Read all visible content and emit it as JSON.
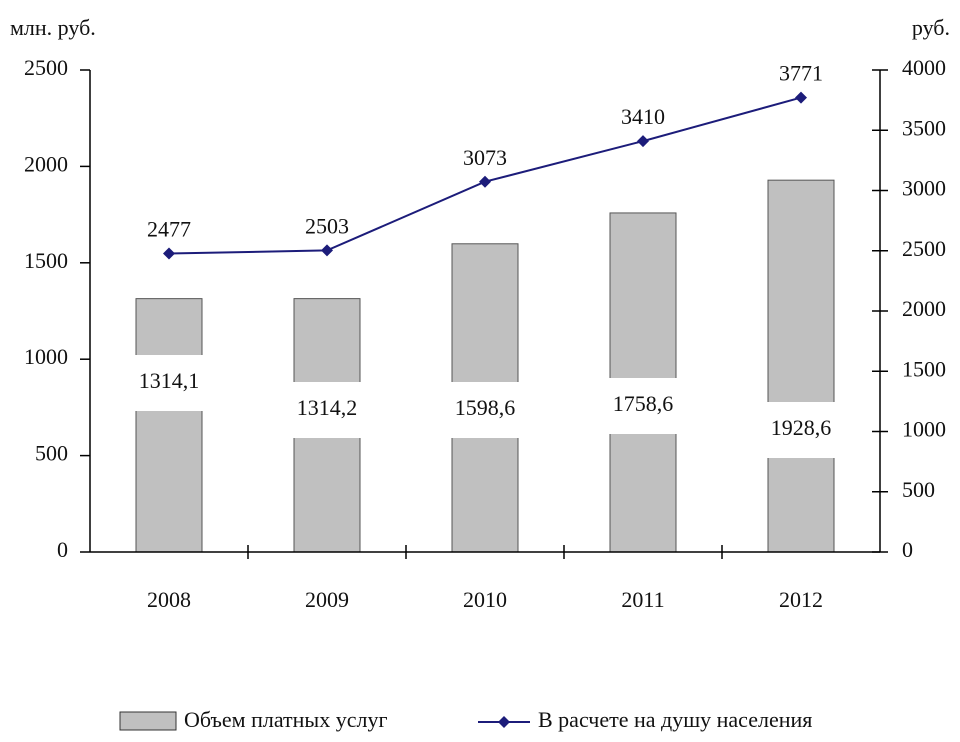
{
  "chart_data": {
    "type": "bar",
    "y_label": "млн. руб.",
    "y2_label": "руб.",
    "categories": [
      "2008",
      "2009",
      "2010",
      "2011",
      "2012"
    ],
    "series": [
      {
        "name": "Объем платных услуг",
        "type": "bar",
        "color": "#c0c0c0",
        "values": [
          1314.1,
          1314.2,
          1598.6,
          1758.6,
          1928.6
        ],
        "value_labels": [
          "1314,1",
          "1314,2",
          "1598,6",
          "1758,6",
          "1928,6"
        ]
      },
      {
        "name": "В расчете на душу населения",
        "type": "line",
        "color": "#1c1c7a",
        "axis": "y2",
        "values": [
          2477,
          2503,
          3073,
          3410,
          3771
        ]
      }
    ],
    "ylim": [
      0,
      2500
    ],
    "yticks": [
      0,
      500,
      1000,
      1500,
      2000,
      2500
    ],
    "y2lim": [
      0,
      4000
    ],
    "y2ticks": [
      0,
      500,
      1000,
      1500,
      2000,
      2500,
      3000,
      3500,
      4000
    ]
  }
}
